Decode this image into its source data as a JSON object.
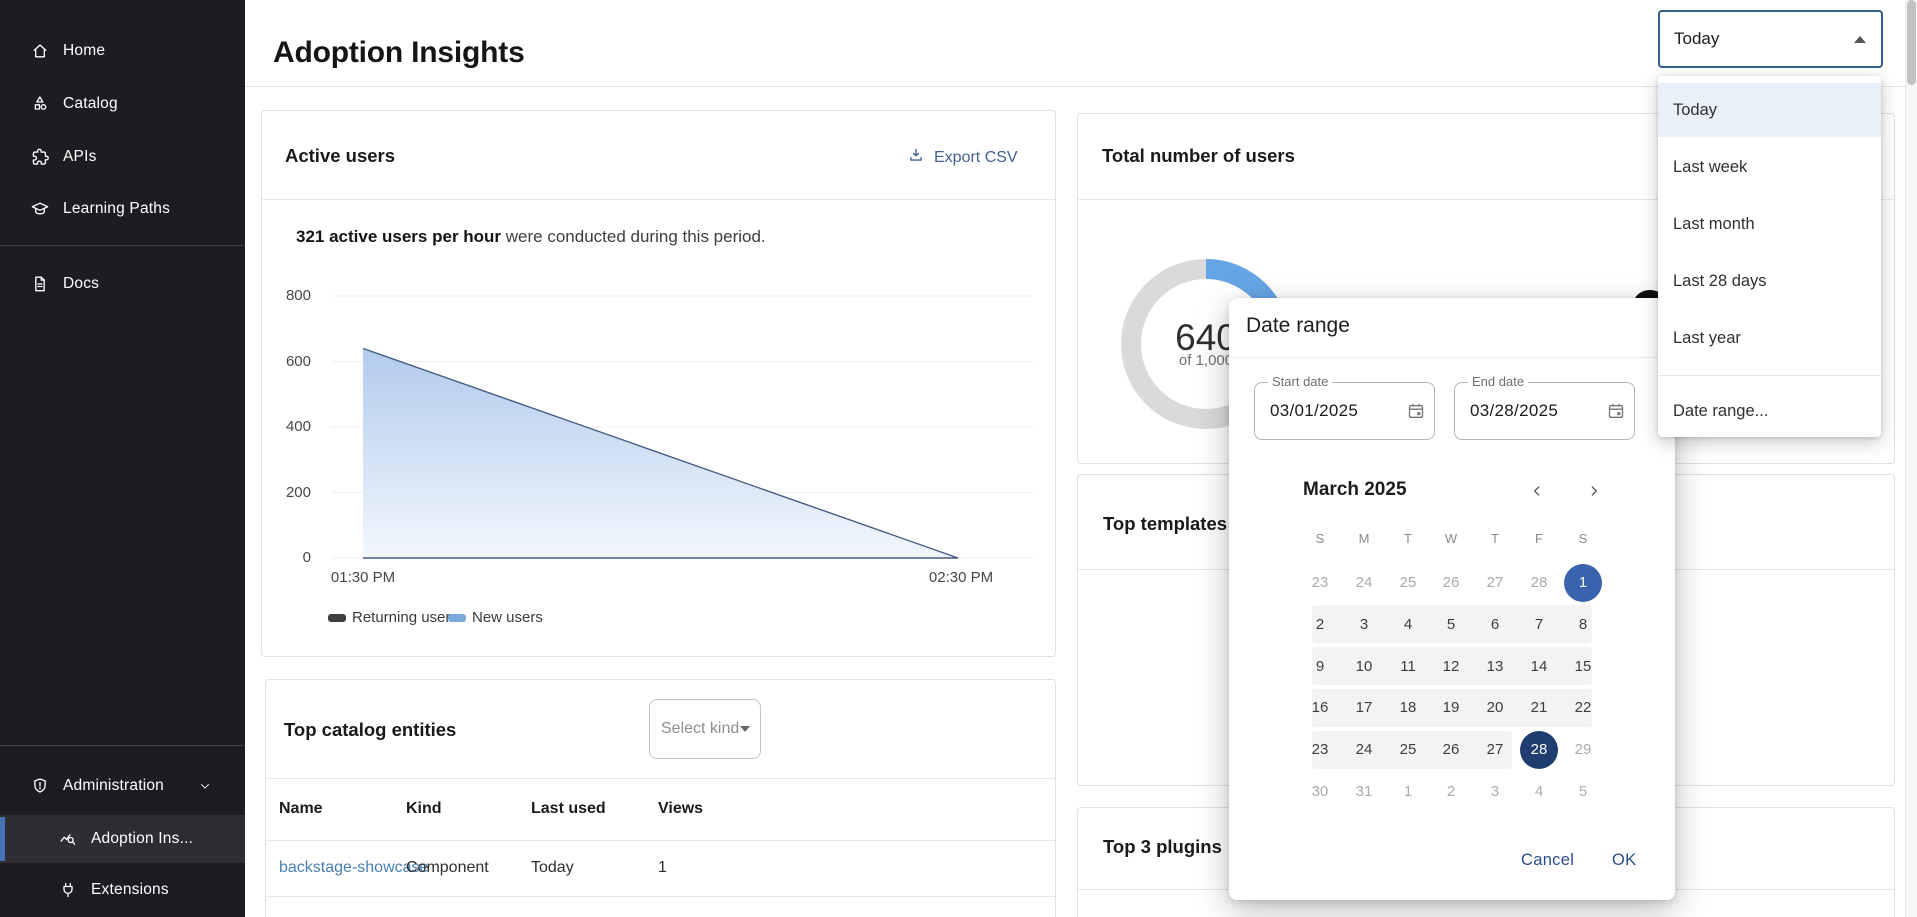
{
  "page": {
    "title": "Adoption Insights"
  },
  "sidebar": {
    "items": [
      {
        "id": "home",
        "label": "Home",
        "icon": "home-icon"
      },
      {
        "id": "catalog",
        "label": "Catalog",
        "icon": "catalog-icon"
      },
      {
        "id": "apis",
        "label": "APIs",
        "icon": "apis-icon"
      },
      {
        "id": "learning-paths",
        "label": "Learning Paths",
        "icon": "learning-paths-icon"
      },
      {
        "id": "docs",
        "label": "Docs",
        "icon": "docs-icon"
      },
      {
        "id": "administration",
        "label": "Administration",
        "icon": "administration-icon",
        "chevron": true
      },
      {
        "id": "adoption-insights",
        "label": "Adoption Ins...",
        "icon": "adoption-insights-icon",
        "nested": true,
        "selected": true
      },
      {
        "id": "extensions",
        "label": "Extensions",
        "icon": "extensions-icon",
        "nested": true
      }
    ]
  },
  "period_select": {
    "value": "Today"
  },
  "period_menu": {
    "options": [
      {
        "label": "Today",
        "selected": true
      },
      {
        "label": "Last week"
      },
      {
        "label": "Last month"
      },
      {
        "label": "Last 28 days"
      },
      {
        "label": "Last year"
      },
      {
        "label": "Date range...",
        "divider_above": true
      }
    ]
  },
  "cards": {
    "active_users": {
      "title": "Active users",
      "export_label": "Export CSV",
      "summary_bold": "321 active users per hour",
      "summary_rest": " were conducted during this period.",
      "legend": [
        {
          "label": "Returning users",
          "color": "#3f3f3f"
        },
        {
          "label": "New users",
          "color": "#7aa9de"
        }
      ]
    },
    "total_users": {
      "title": "Total number of users",
      "value": "640",
      "subtitle": "of 1,000"
    },
    "top_templates": {
      "title": "Top templates"
    },
    "top_catalog": {
      "title": "Top catalog entities",
      "kind_filter_placeholder": "Select kind",
      "columns": [
        "Name",
        "Kind",
        "Last used",
        "Views"
      ],
      "rows": [
        {
          "name": "backstage-showcase",
          "kind": "Component",
          "last_used": "Today",
          "views": "1"
        }
      ]
    },
    "top_plugins": {
      "title": "Top 3 plugins"
    }
  },
  "dialog": {
    "title": "Date range",
    "start_date": {
      "label": "Start date",
      "value": "03/01/2025"
    },
    "end_date": {
      "label": "End date",
      "value": "03/28/2025"
    },
    "calendar": {
      "month": "March 2025",
      "weekdays": [
        "S",
        "M",
        "T",
        "W",
        "T",
        "F",
        "S"
      ],
      "weeks": [
        [
          {
            "d": "23",
            "s": "out"
          },
          {
            "d": "24",
            "s": "out"
          },
          {
            "d": "25",
            "s": "out"
          },
          {
            "d": "26",
            "s": "out"
          },
          {
            "d": "27",
            "s": "out"
          },
          {
            "d": "28",
            "s": "out"
          },
          {
            "d": "1",
            "s": "start"
          }
        ],
        [
          {
            "d": "2",
            "s": "in"
          },
          {
            "d": "3",
            "s": "in"
          },
          {
            "d": "4",
            "s": "in"
          },
          {
            "d": "5",
            "s": "in"
          },
          {
            "d": "6",
            "s": "in"
          },
          {
            "d": "7",
            "s": "in"
          },
          {
            "d": "8",
            "s": "in"
          }
        ],
        [
          {
            "d": "9",
            "s": "in"
          },
          {
            "d": "10",
            "s": "in"
          },
          {
            "d": "11",
            "s": "in"
          },
          {
            "d": "12",
            "s": "in"
          },
          {
            "d": "13",
            "s": "in"
          },
          {
            "d": "14",
            "s": "in"
          },
          {
            "d": "15",
            "s": "in"
          }
        ],
        [
          {
            "d": "16",
            "s": "in"
          },
          {
            "d": "17",
            "s": "in"
          },
          {
            "d": "18",
            "s": "in"
          },
          {
            "d": "19",
            "s": "in"
          },
          {
            "d": "20",
            "s": "in"
          },
          {
            "d": "21",
            "s": "in"
          },
          {
            "d": "22",
            "s": "in"
          }
        ],
        [
          {
            "d": "23",
            "s": "in"
          },
          {
            "d": "24",
            "s": "in"
          },
          {
            "d": "25",
            "s": "in"
          },
          {
            "d": "26",
            "s": "in"
          },
          {
            "d": "27",
            "s": "in"
          },
          {
            "d": "28",
            "s": "end"
          },
          {
            "d": "29",
            "s": "out"
          }
        ],
        [
          {
            "d": "30",
            "s": "out"
          },
          {
            "d": "31",
            "s": "out"
          },
          {
            "d": "1",
            "s": "out"
          },
          {
            "d": "2",
            "s": "out"
          },
          {
            "d": "3",
            "s": "out"
          },
          {
            "d": "4",
            "s": "out"
          },
          {
            "d": "5",
            "s": "out"
          }
        ]
      ]
    },
    "cancel_label": "Cancel",
    "ok_label": "OK"
  },
  "chart_data": [
    {
      "type": "area",
      "title": "Active users",
      "x": [
        "01:30 PM",
        "02:30 PM"
      ],
      "series": [
        {
          "name": "Active users per hour",
          "values": [
            640,
            0
          ]
        }
      ],
      "legend": [
        "Returning users",
        "New users"
      ],
      "yticks": [
        800,
        600,
        400,
        200,
        0
      ],
      "ylim": [
        0,
        800
      ],
      "grid": true,
      "legend_position": "bottom"
    },
    {
      "type": "donut",
      "title": "Total number of users",
      "value": 640,
      "total": 1000,
      "center_label": "640",
      "center_sublabel": "of 1,000"
    }
  ],
  "colors": {
    "sidebar_bg": "#1b1d21",
    "sidebar_selected_bar": "#4672b5",
    "select_border": "#335e8d",
    "menu_highlight": "#e9f0fa",
    "donut_blue": "#66a5e5",
    "donut_track": "#dadada",
    "area_line": "#455d82",
    "range_start": "#3a63ae",
    "range_end": "#1f3e6f",
    "link": "#4a7fb5",
    "action_blue": "#2b4d8c"
  }
}
